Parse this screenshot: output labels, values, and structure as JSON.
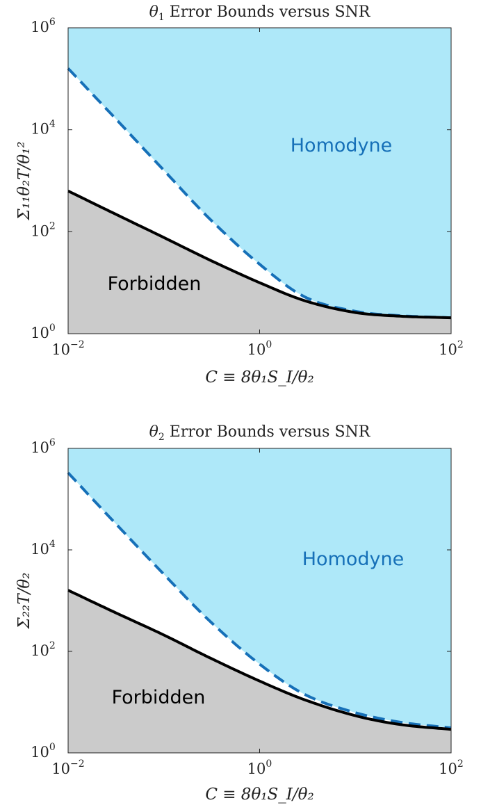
{
  "figure": {
    "colors": {
      "forbidden_fill": "#cbcbcb",
      "homodyne_fill": "#aee8f9",
      "homodyne_curve": "#1670b8",
      "forbidden_curve": "#000000",
      "region_label_forbidden": "#000000",
      "region_label_homodyne": "#1670b8"
    }
  },
  "chart_data": [
    {
      "type": "area",
      "title": {
        "base": "θ",
        "sub": "1",
        "rest": " Error Bounds versus SNR"
      },
      "xlabel": "C ≡ 8θ₁S_I/θ₂",
      "ylabel": "Σ₁₁θ₂T/θ₁²",
      "xscale": "log",
      "yscale": "log",
      "xlim": [
        0.01,
        100
      ],
      "ylim": [
        1,
        1000000
      ],
      "xticks": [
        {
          "base": "10",
          "exp": "−2"
        },
        {
          "base": "10",
          "exp": "0"
        },
        {
          "base": "10",
          "exp": "2"
        }
      ],
      "yticks": [
        {
          "base": "10",
          "exp": "0"
        },
        {
          "base": "10",
          "exp": "2"
        },
        {
          "base": "10",
          "exp": "4"
        },
        {
          "base": "10",
          "exp": "6"
        }
      ],
      "regions": [
        {
          "name": "Forbidden",
          "below": "bound"
        },
        {
          "name": "Homodyne",
          "above": "homodyne"
        }
      ],
      "series": [
        {
          "id": "bound",
          "style": "solid",
          "x": [
            0.01,
            0.03,
            0.1,
            0.3,
            1,
            3,
            10,
            30,
            100
          ],
          "y": [
            630,
            230,
            77,
            28,
            10,
            4.4,
            2.6,
            2.2,
            2.05
          ]
        },
        {
          "id": "homodyne",
          "style": "dashed",
          "x": [
            0.01,
            0.03,
            0.1,
            0.3,
            1,
            3,
            10,
            30,
            100
          ],
          "y": [
            160000,
            18000,
            1600,
            180,
            23,
            5.2,
            2.75,
            2.25,
            2.05
          ]
        }
      ]
    },
    {
      "type": "area",
      "title": {
        "base": "θ",
        "sub": "2",
        "rest": " Error Bounds versus SNR"
      },
      "xlabel": "C ≡ 8θ₁S_I/θ₂",
      "ylabel": "Σ₂₂T/θ₂",
      "xscale": "log",
      "yscale": "log",
      "xlim": [
        0.01,
        100
      ],
      "ylim": [
        1,
        1000000
      ],
      "xticks": [
        {
          "base": "10",
          "exp": "−2"
        },
        {
          "base": "10",
          "exp": "0"
        },
        {
          "base": "10",
          "exp": "2"
        }
      ],
      "yticks": [
        {
          "base": "10",
          "exp": "0"
        },
        {
          "base": "10",
          "exp": "2"
        },
        {
          "base": "10",
          "exp": "4"
        },
        {
          "base": "10",
          "exp": "6"
        }
      ],
      "regions": [
        {
          "name": "Forbidden",
          "below": "bound"
        },
        {
          "name": "Homodyne",
          "above": "homodyne"
        }
      ],
      "series": [
        {
          "id": "bound",
          "style": "solid",
          "x": [
            0.01,
            0.03,
            0.1,
            0.3,
            1,
            3,
            10,
            30,
            100
          ],
          "y": [
            1600,
            600,
            210,
            75,
            26,
            11,
            5.4,
            3.6,
            2.9
          ]
        },
        {
          "id": "homodyne",
          "style": "dashed",
          "x": [
            0.01,
            0.03,
            0.1,
            0.3,
            1,
            3,
            10,
            30,
            100
          ],
          "y": [
            330000,
            36000,
            3300,
            400,
            56,
            14,
            6.2,
            4,
            3.1
          ]
        }
      ]
    }
  ]
}
